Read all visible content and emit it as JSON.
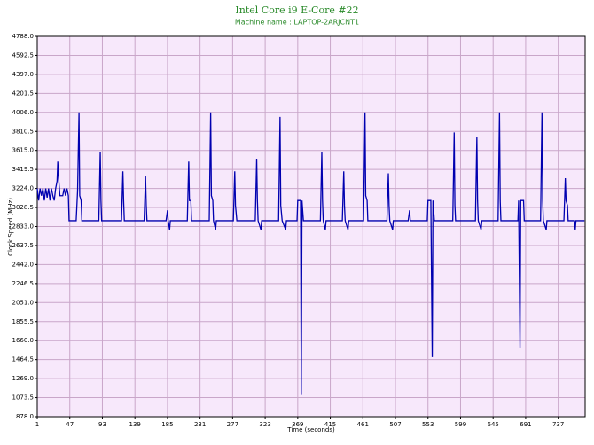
{
  "chart_data": {
    "type": "line",
    "title": "Intel Core i9 E-Core #22",
    "subtitle": "Machine name : LAPTOP-2ARJCNT1",
    "x_label": "Time (seconds)",
    "y_label": "Clock Speed (MHz)",
    "xlim": [
      1,
      775
    ],
    "xticks": [
      1,
      47,
      93,
      139,
      185,
      231,
      277,
      323,
      369,
      415,
      461,
      507,
      553,
      599,
      645,
      691,
      737
    ],
    "ylim": [
      878,
      4788
    ],
    "yticks": [
      {
        "value": 878,
        "label": "878.0"
      },
      1073.5,
      {
        "value": 1269,
        "label": "1269.0"
      },
      1464.5,
      {
        "value": 1660,
        "label": "1660.0"
      },
      1855.5,
      {
        "value": 2051,
        "label": "2051.0"
      },
      2246.5,
      {
        "value": 2442,
        "label": "2442.0"
      },
      2637.5,
      {
        "value": 2833,
        "label": "2833.0"
      },
      3028.5,
      {
        "value": 3224,
        "label": "3224.0"
      },
      3419.5,
      {
        "value": 3615,
        "label": "3615.0"
      },
      3810.5,
      {
        "value": 4006,
        "label": "4006.0"
      },
      4201.5,
      {
        "value": 4397,
        "label": "4397.0"
      },
      4592.5,
      {
        "value": 4788,
        "label": "4788.0"
      }
    ],
    "grid": true,
    "background": "#f7e8fb",
    "series": [
      {
        "name": "Clock Speed",
        "color": "#0000b0",
        "x": [
          1,
          3,
          5,
          7,
          9,
          11,
          13,
          15,
          17,
          19,
          21,
          23,
          25,
          27,
          29,
          30,
          31,
          33,
          35,
          37,
          39,
          41,
          43,
          45,
          46,
          56,
          58,
          60,
          61,
          63,
          64,
          88,
          90,
          91,
          92,
          120,
          122,
          123,
          124,
          152,
          154,
          155,
          156,
          183,
          185,
          186,
          188,
          189,
          213,
          215,
          216,
          218,
          219,
          244,
          246,
          247,
          249,
          250,
          253,
          254,
          278,
          280,
          281,
          283,
          309,
          311,
          312,
          313,
          317,
          318,
          342,
          344,
          345,
          347,
          352,
          353,
          368,
          369,
          373,
          374,
          375,
          377,
          401,
          403,
          404,
          405,
          408,
          409,
          432,
          434,
          435,
          436,
          440,
          441,
          462,
          464,
          465,
          467,
          468,
          495,
          497,
          498,
          499,
          503,
          504,
          525,
          527,
          528,
          552,
          553,
          557,
          559,
          560,
          562,
          588,
          590,
          591,
          592,
          620,
          622,
          623,
          624,
          628,
          629,
          652,
          654,
          655,
          656,
          680,
          681,
          683,
          684,
          688,
          689,
          712,
          714,
          715,
          716,
          720,
          721,
          745,
          747,
          748,
          750,
          751,
          760,
          761,
          762,
          774
        ],
        "values": [
          3224,
          3100,
          3224,
          3150,
          3224,
          3100,
          3224,
          3130,
          3224,
          3100,
          3224,
          3150,
          3100,
          3224,
          3300,
          3500,
          3350,
          3150,
          3150,
          3150,
          3224,
          3150,
          3224,
          3150,
          2893,
          2893,
          3200,
          4006,
          3150,
          3100,
          2893,
          2893,
          3600,
          3100,
          2893,
          2893,
          3400,
          3100,
          2893,
          2893,
          3350,
          3050,
          2893,
          2893,
          3000,
          2893,
          2800,
          2893,
          2893,
          3500,
          3100,
          3100,
          2893,
          2893,
          4006,
          3150,
          3100,
          2893,
          2800,
          2893,
          2893,
          3400,
          3050,
          2893,
          2893,
          3530,
          3100,
          2893,
          2800,
          2893,
          2893,
          3960,
          3050,
          2893,
          2800,
          2893,
          2893,
          3100,
          3100,
          1100,
          3100,
          2893,
          2893,
          3600,
          3100,
          2893,
          2800,
          2893,
          2893,
          3400,
          3050,
          2893,
          2800,
          2893,
          2893,
          4006,
          3150,
          3100,
          2893,
          2893,
          3380,
          3050,
          2893,
          2800,
          2893,
          2893,
          3000,
          2893,
          2893,
          3100,
          3100,
          1490,
          3100,
          2893,
          2893,
          3800,
          3050,
          2893,
          2893,
          3750,
          3100,
          2893,
          2800,
          2893,
          2893,
          4006,
          3100,
          2893,
          2893,
          3100,
          1580,
          3100,
          3100,
          2893,
          2893,
          4006,
          3100,
          2893,
          2800,
          2893,
          2893,
          3330,
          3100,
          3050,
          2893,
          2893,
          2800,
          2893,
          2893
        ]
      }
    ]
  }
}
